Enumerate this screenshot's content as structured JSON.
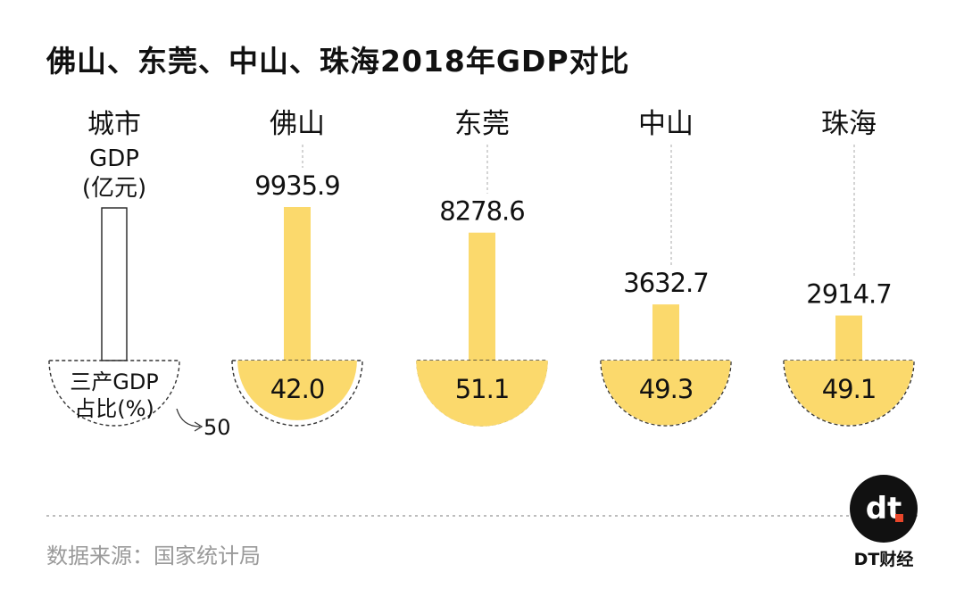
{
  "title": "佛山、东莞、中山、珠海2018年GDP对比",
  "source": "数据来源：国家统计局",
  "brand": {
    "logo_text": "dt",
    "name": "DT财经"
  },
  "colors": {
    "accent": "#fbd96c",
    "text": "#111111",
    "muted": "#9a9a9a",
    "guide": "#b8b8b8"
  },
  "legend": {
    "header_lines": [
      "城市",
      "GDP",
      "(亿元)"
    ],
    "share_lines": [
      "三产GDP",
      "占比(%)"
    ],
    "reference_value": 50,
    "reference_label": "50"
  },
  "chart_data": {
    "type": "bar",
    "categories": [
      "佛山",
      "东莞",
      "中山",
      "珠海"
    ],
    "series": [
      {
        "name": "GDP(亿元)",
        "values": [
          9935.9,
          8278.6,
          3632.7,
          2914.7
        ],
        "labels": [
          "9935.9",
          "8278.6",
          "3632.7",
          "2914.7"
        ]
      },
      {
        "name": "三产GDP占比(%)",
        "values": [
          42.0,
          51.1,
          49.3,
          49.1
        ],
        "labels": [
          "42.0",
          "51.1",
          "49.3",
          "49.1"
        ]
      }
    ],
    "ylim": [
      0,
      10000
    ]
  }
}
